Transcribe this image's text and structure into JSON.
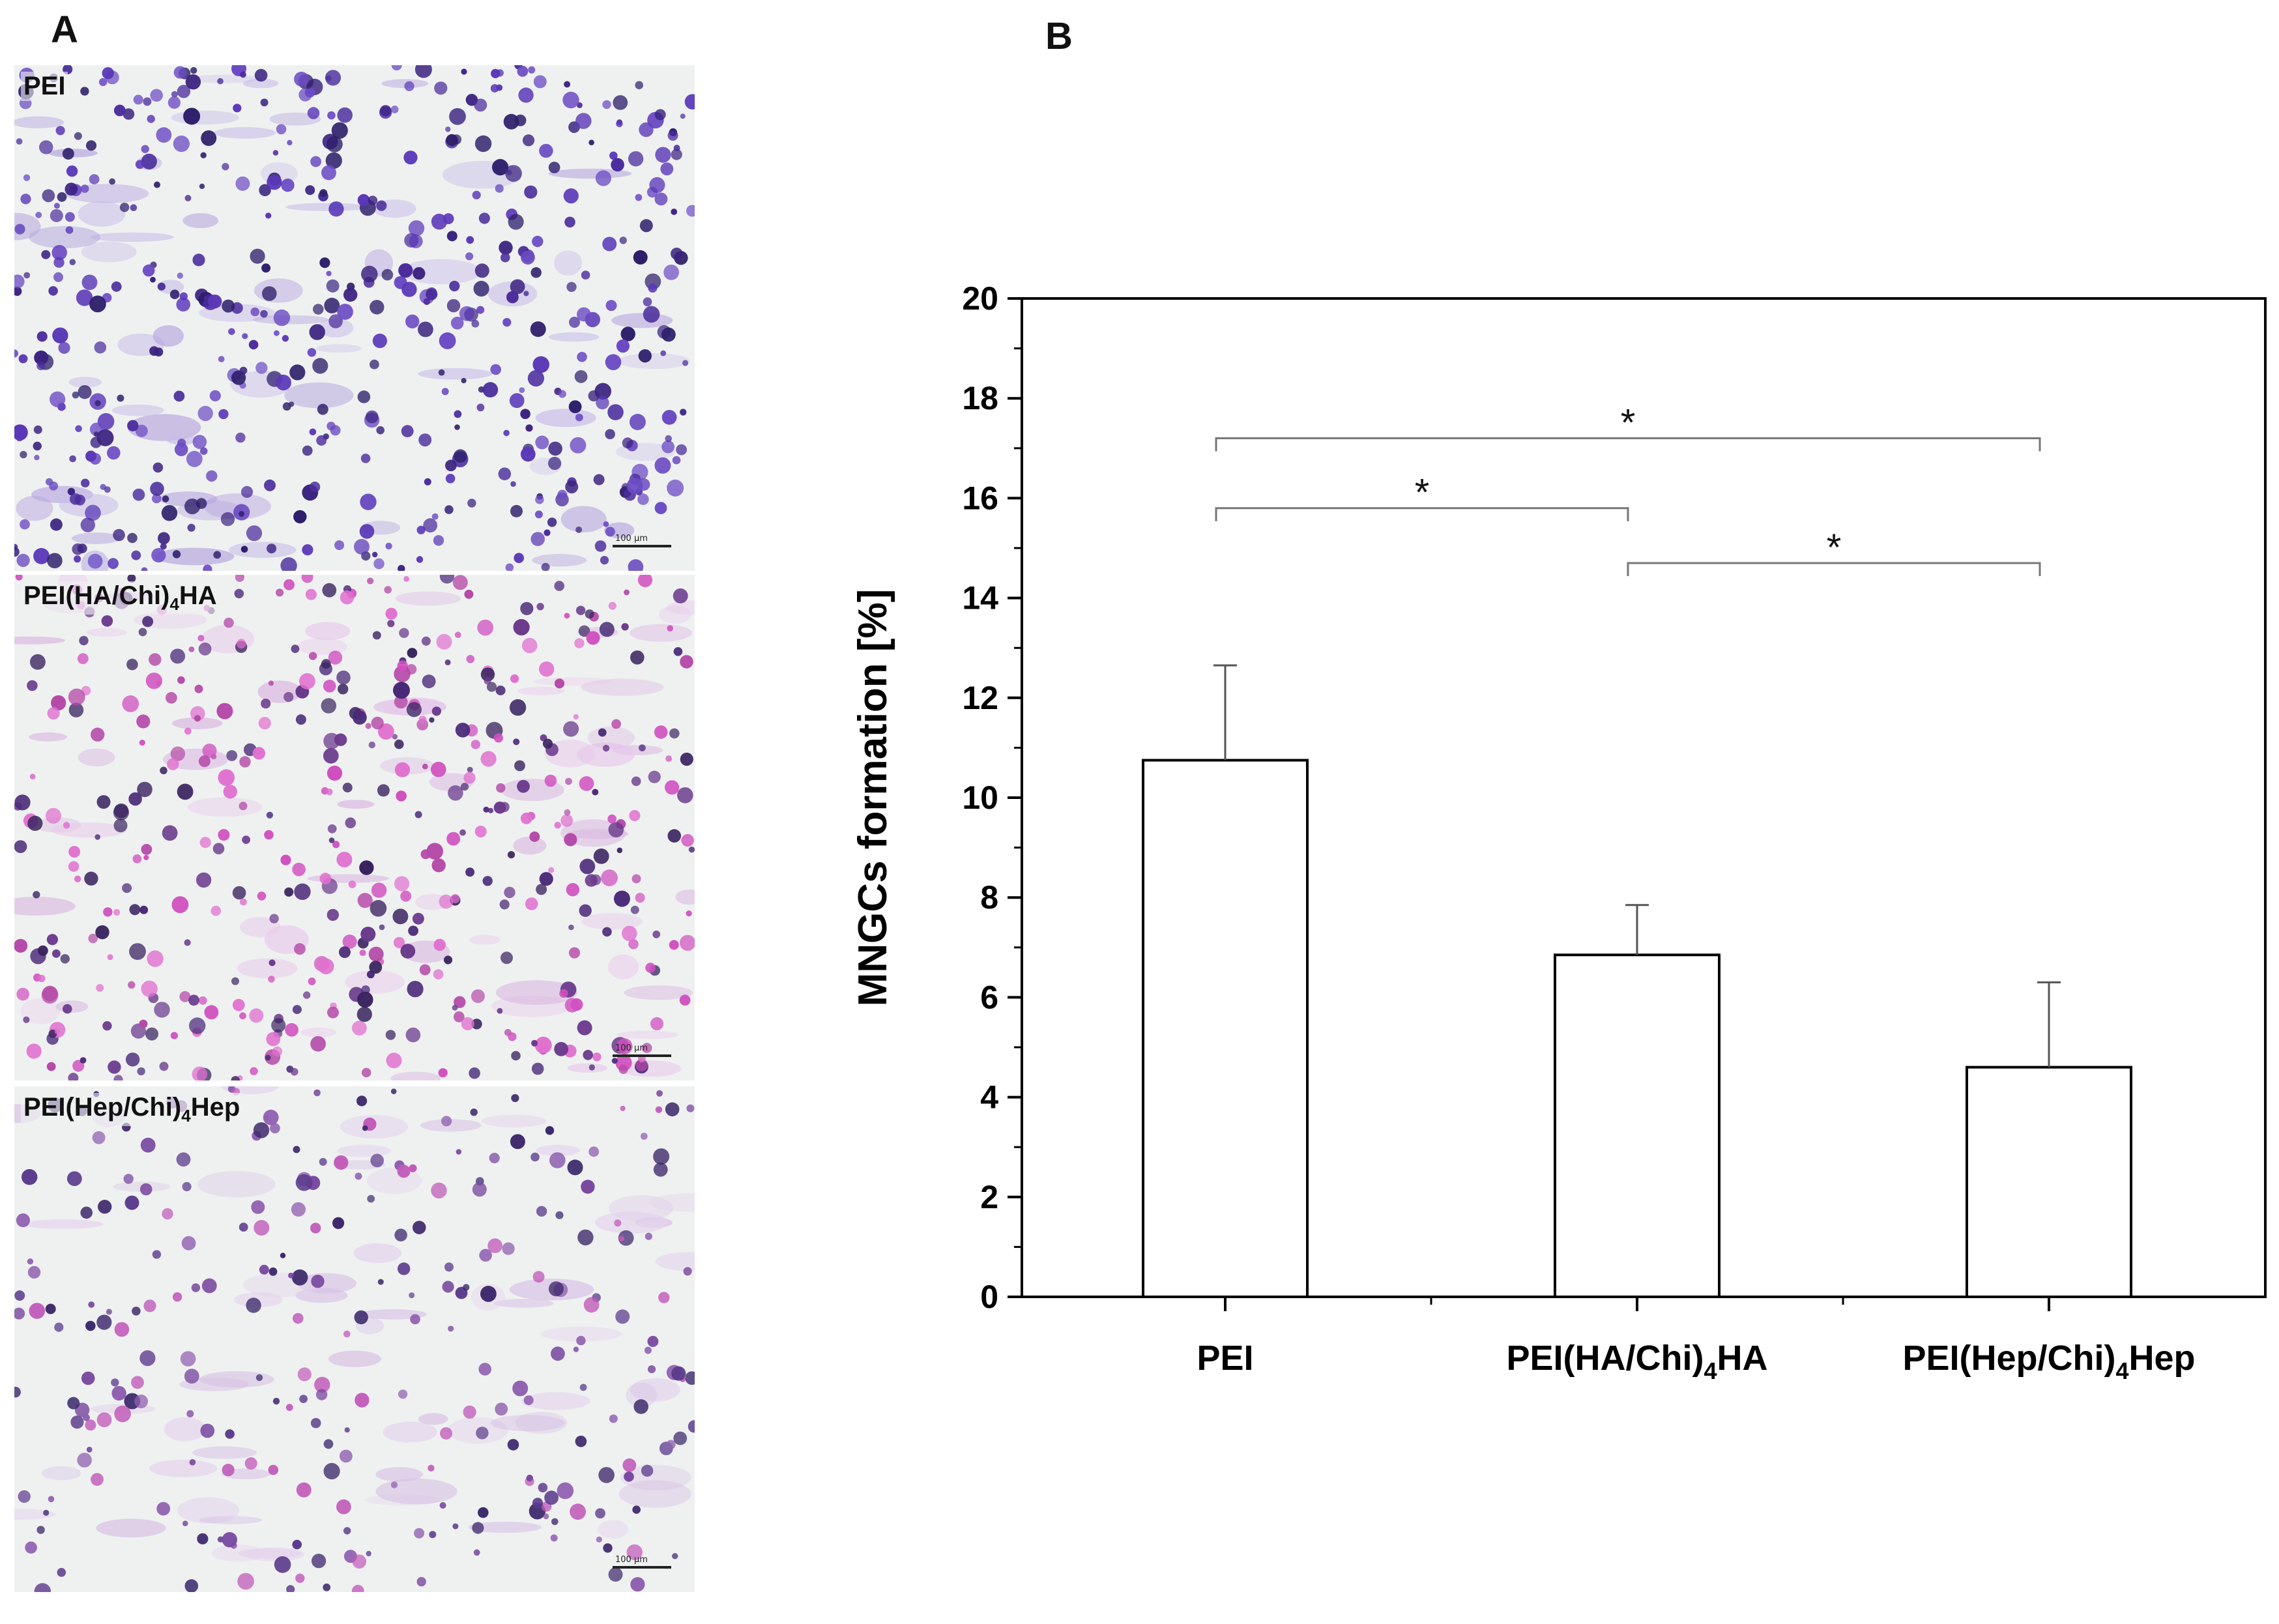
{
  "panel_a": {
    "letter": "A",
    "images": [
      {
        "label_parts": [
          "PEI"
        ],
        "scale_text": "100 µm",
        "stain": "violet"
      },
      {
        "label_parts": [
          "PEI(HA/Chi)",
          "4",
          "HA"
        ],
        "scale_text": "100 µm",
        "stain": "magenta"
      },
      {
        "label_parts": [
          "PEI(Hep/Chi)",
          "4",
          "Hep"
        ],
        "scale_text": "100 µm",
        "stain": "sparse"
      }
    ]
  },
  "panel_b": {
    "letter": "B"
  },
  "chart_data": {
    "type": "bar",
    "categories": [
      "PEI",
      "PEI(HA/Chi)4HA",
      "PEI(Hep/Chi)4Hep"
    ],
    "category_labels": [
      {
        "main": "PEI",
        "sub": "",
        "tail": ""
      },
      {
        "main": "PEI(HA/Chi)",
        "sub": "4",
        "tail": "HA"
      },
      {
        "main": "PEI(Hep/Chi)",
        "sub": "4",
        "tail": "Hep"
      }
    ],
    "values": [
      10.75,
      6.85,
      4.6
    ],
    "errors": [
      1.9,
      1.0,
      1.7
    ],
    "ylabel": "MNGCs formation [%]",
    "xlabel": "",
    "ylim": [
      0,
      20
    ],
    "yticks": [
      0,
      2,
      4,
      6,
      8,
      10,
      12,
      14,
      16,
      18,
      20
    ],
    "bar_fill": "#ffffff",
    "bar_stroke": "#000000",
    "significance": [
      {
        "from": 0,
        "to": 2,
        "label": "*",
        "y": 17.2
      },
      {
        "from": 0,
        "to": 1,
        "label": "*",
        "y": 15.8
      },
      {
        "from": 1,
        "to": 2,
        "label": "*",
        "y": 14.7
      }
    ],
    "grid": false,
    "legend": "none"
  }
}
